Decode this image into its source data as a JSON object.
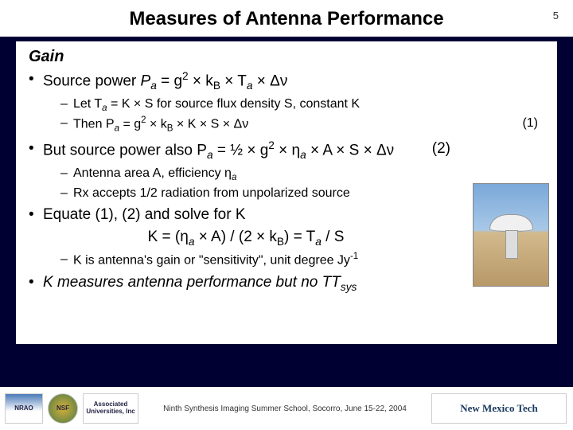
{
  "page_number": "5",
  "title": "Measures of Antenna Performance",
  "gain_heading": "Gain",
  "bullets": {
    "b1_pre": "Source power ",
    "b1_eq": "P",
    "b1_sub_a": "a",
    "b1_mid1": " = g",
    "b1_sup2": "2",
    "b1_mid2": " × k",
    "b1_subB": "B",
    "b1_mid3": " × T",
    "b1_mid4": " × Δν",
    "s1_pre": "Let T",
    "s1_mid": " = K × S for source flux density S, constant K",
    "s2_pre": "Then P",
    "s2_mid1": " = g",
    "s2_mid2": " × k",
    "s2_mid3": " × K × S × Δν",
    "eq1": "(1)",
    "b2_pre": "But source power also P",
    "b2_mid1": " = ½ × g",
    "b2_mid2": " × η",
    "b2_mid3": " × A × S × Δν",
    "eq2": "(2)",
    "s3": "Antenna area A, efficiency η",
    "s4": "Rx accepts 1/2 radiation from unpolarized source",
    "b3": "Equate (1), (2) and solve for K",
    "eq_line_pre": "K = (η",
    "eq_line_mid": " × A) / (2 × k",
    "eq_line_post": ") = T",
    "eq_line_end": " / S",
    "s5_pre": "K is antenna's gain or \"sensitivity\", unit degree Jy",
    "s5_sup": "-1",
    "b4_pre": "K measures antenna performance but no T",
    "b4_sub": "sys"
  },
  "footer_text": "Ninth Synthesis Imaging Summer School, Socorro, June 15-22, 2004",
  "logos": {
    "nrao": "NRAO",
    "nsf": "NSF",
    "aui": "Associated Universities, Inc",
    "nmt": "New Mexico Tech"
  }
}
